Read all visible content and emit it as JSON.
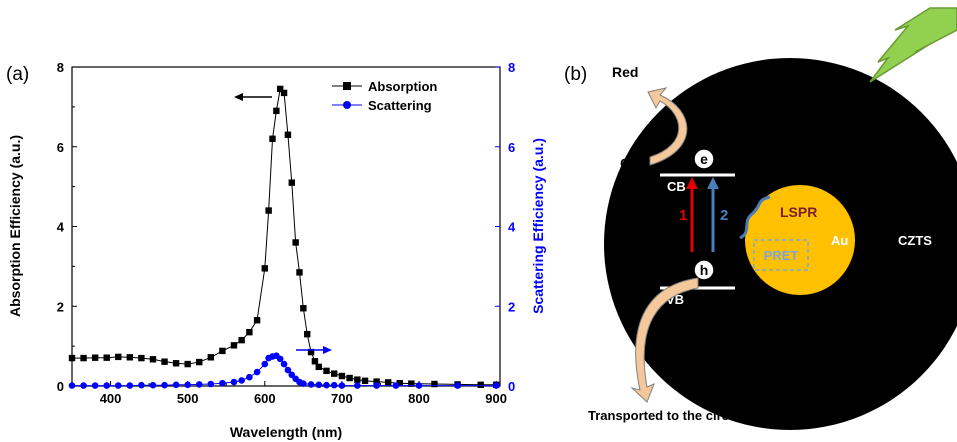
{
  "panel_a_label": "(a)",
  "panel_b_label": "(b)",
  "chart_data": {
    "type": "line",
    "xlabel": "Wavelength (nm)",
    "ylabel": "Absorption Efficiency (a.u.)",
    "y2label": "Scattering Efficiency (a.u.)",
    "xlim": [
      350,
      905
    ],
    "ylim": [
      0,
      8
    ],
    "y2lim": [
      0,
      8
    ],
    "x_ticks": [
      400,
      500,
      600,
      700,
      800,
      900
    ],
    "y_ticks": [
      0,
      2,
      4,
      6,
      8
    ],
    "y2_ticks": [
      0,
      2,
      4,
      6,
      8
    ],
    "legend_position": "top-right",
    "series": [
      {
        "name": "Absorption",
        "color": "#000000",
        "marker": "square",
        "axis": "left",
        "x": [
          350,
          365,
          380,
          395,
          410,
          425,
          440,
          455,
          470,
          485,
          500,
          515,
          530,
          545,
          560,
          570,
          580,
          590,
          600,
          605,
          610,
          615,
          620,
          625,
          630,
          635,
          640,
          645,
          650,
          655,
          660,
          665,
          670,
          680,
          690,
          700,
          710,
          720,
          730,
          745,
          760,
          775,
          790,
          820,
          850,
          880,
          900
        ],
        "values": [
          0.7,
          0.7,
          0.71,
          0.71,
          0.73,
          0.72,
          0.7,
          0.67,
          0.61,
          0.57,
          0.55,
          0.6,
          0.72,
          0.88,
          1.02,
          1.15,
          1.35,
          1.65,
          2.95,
          4.4,
          6.2,
          6.9,
          7.45,
          7.35,
          6.3,
          5.1,
          3.6,
          2.85,
          1.95,
          1.3,
          0.85,
          0.62,
          0.48,
          0.38,
          0.31,
          0.25,
          0.2,
          0.16,
          0.13,
          0.11,
          0.09,
          0.07,
          0.06,
          0.05,
          0.04,
          0.03,
          0.03
        ]
      },
      {
        "name": "Scattering",
        "color": "#0000ff",
        "marker": "circle",
        "axis": "right",
        "x": [
          350,
          365,
          380,
          395,
          410,
          425,
          440,
          455,
          470,
          485,
          500,
          515,
          530,
          545,
          560,
          570,
          580,
          590,
          600,
          605,
          610,
          615,
          620,
          625,
          630,
          635,
          640,
          645,
          650,
          660,
          670,
          680,
          690,
          700,
          720,
          745,
          770,
          800,
          850,
          900
        ],
        "values": [
          0.01,
          0.01,
          0.01,
          0.01,
          0.01,
          0.01,
          0.02,
          0.02,
          0.02,
          0.03,
          0.03,
          0.04,
          0.05,
          0.07,
          0.1,
          0.14,
          0.22,
          0.35,
          0.55,
          0.7,
          0.74,
          0.76,
          0.68,
          0.55,
          0.4,
          0.28,
          0.18,
          0.1,
          0.06,
          0.04,
          0.03,
          0.02,
          0.02,
          0.01,
          0.01,
          0.01,
          0.01,
          0.01,
          0.01,
          0.01
        ]
      }
    ]
  },
  "diagram": {
    "red_label": "Red",
    "ox_label": "Ox",
    "e_label": "e",
    "h_label": "h",
    "cb_label": "CB",
    "vb_label": "VB",
    "arrow1_label": "1",
    "arrow2_label": "2",
    "lspr_label": "LSPR",
    "pret_label": "PRET",
    "au_label": "Au",
    "czts_label": "CZTS",
    "transport_label": "Transported to the circuit",
    "colors": {
      "czts": "#000000",
      "au": "#ffc000",
      "arrow1": "#e00000",
      "arrow2": "#4a7ebb",
      "lspr": "#7b1f2b",
      "pret": "#7aa7d8",
      "lightning": "#92d050",
      "curved_arrow": "#f4c89a"
    }
  }
}
